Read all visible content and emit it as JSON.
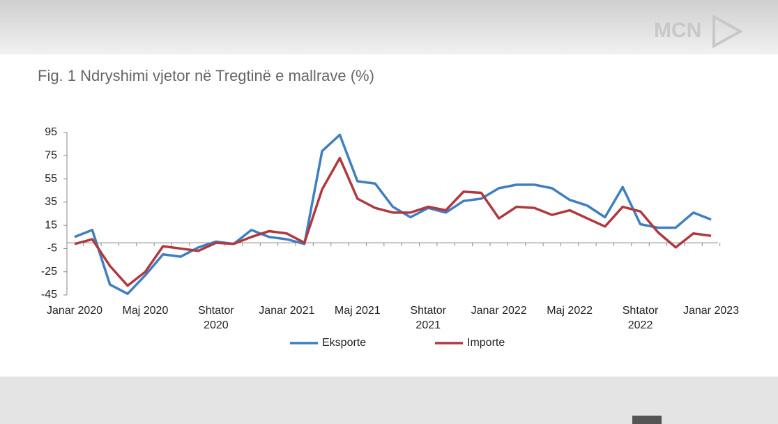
{
  "logo": "MCN",
  "chart_data": {
    "type": "line",
    "title": "Fig. 1 Ndryshimi vjetor në Tregtinë e mallrave (%)",
    "categories": [
      "Janar 2020",
      null,
      null,
      null,
      "Maj 2020",
      null,
      null,
      null,
      "Shtator 2020",
      null,
      null,
      null,
      "Janar 2021",
      null,
      null,
      null,
      "Maj 2021",
      null,
      null,
      null,
      "Shtator 2021",
      null,
      null,
      null,
      "Janar 2022",
      null,
      null,
      null,
      "Maj 2022",
      null,
      null,
      null,
      "Shtator 2022",
      null,
      null,
      null,
      "Janar 2023"
    ],
    "series": [
      {
        "name": "Eksporte",
        "color": "#3f7fc0",
        "values": [
          5,
          11,
          -36,
          -44,
          -28,
          -10,
          -12,
          -4,
          1,
          -1,
          11,
          5,
          3,
          -1,
          79,
          93,
          53,
          51,
          31,
          22,
          30,
          26,
          36,
          38,
          47,
          50,
          50,
          47,
          37,
          32,
          22,
          48,
          16,
          13,
          13,
          26,
          20
        ]
      },
      {
        "name": "Importe",
        "color": "#b0393f",
        "values": [
          -1,
          3,
          -20,
          -37,
          -25,
          -3,
          -5,
          -7,
          0,
          -1,
          5,
          10,
          8,
          0,
          46,
          73,
          38,
          30,
          26,
          26,
          31,
          28,
          44,
          43,
          21,
          31,
          30,
          24,
          28,
          21,
          14,
          31,
          27,
          9,
          -4,
          8,
          6
        ]
      }
    ],
    "ylim": [
      -45,
      95
    ],
    "yticks": [
      95,
      75,
      55,
      35,
      15,
      -5,
      -25,
      -45
    ],
    "legend": "bottom"
  }
}
